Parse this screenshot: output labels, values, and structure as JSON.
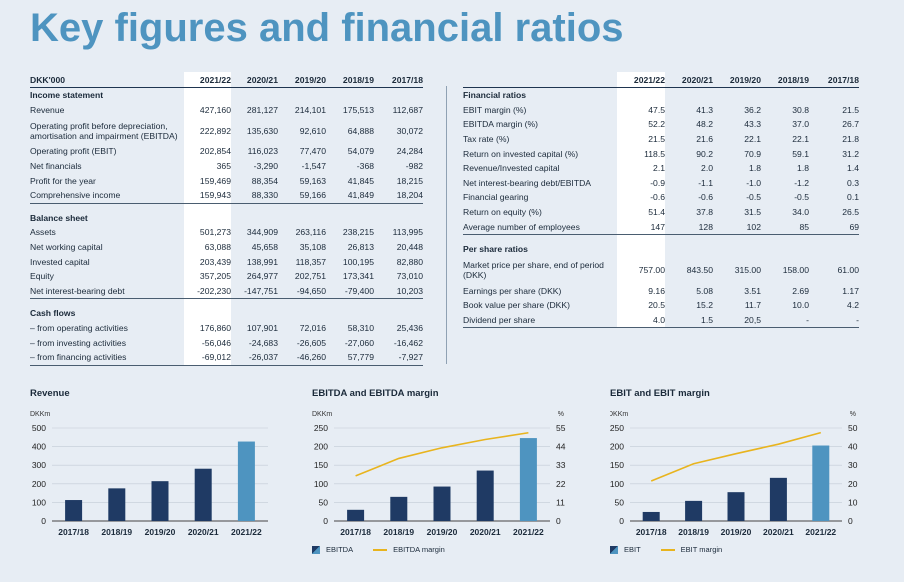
{
  "title": "Key figures and financial ratios",
  "years": [
    "2021/22",
    "2020/21",
    "2019/20",
    "2018/19",
    "2017/18"
  ],
  "left_table": {
    "unit": "DKK'000",
    "sections": [
      {
        "heading": "Income statement",
        "rows": [
          {
            "label": "Revenue",
            "values": [
              "427,160",
              "281,127",
              "214,101",
              "175,513",
              "112,687"
            ]
          },
          {
            "label": "Operating profit before depreciation, amortisation and impairment (EBITDA)",
            "values": [
              "222,892",
              "135,630",
              "92,610",
              "64,888",
              "30,072"
            ]
          },
          {
            "label": "Operating profit (EBIT)",
            "values": [
              "202,854",
              "116,023",
              "77,470",
              "54,079",
              "24,284"
            ]
          },
          {
            "label": "Net financials",
            "values": [
              "365",
              "-3,290",
              "-1,547",
              "-368",
              "-982"
            ]
          },
          {
            "label": "Profit for the year",
            "values": [
              "159,469",
              "88,354",
              "59,163",
              "41,845",
              "18,215"
            ]
          },
          {
            "label": "Comprehensive income",
            "values": [
              "159,943",
              "88,330",
              "59,166",
              "41,849",
              "18,204"
            ]
          }
        ]
      },
      {
        "heading": "Balance sheet",
        "rows": [
          {
            "label": "Assets",
            "values": [
              "501,273",
              "344,909",
              "263,116",
              "238,215",
              "113,995"
            ]
          },
          {
            "label": "Net working capital",
            "values": [
              "63,088",
              "45,658",
              "35,108",
              "26,813",
              "20,448"
            ]
          },
          {
            "label": "Invested capital",
            "values": [
              "203,439",
              "138,991",
              "118,357",
              "100,195",
              "82,880"
            ]
          },
          {
            "label": "Equity",
            "values": [
              "357,205",
              "264,977",
              "202,751",
              "173,341",
              "73,010"
            ]
          },
          {
            "label": "Net interest-bearing debt",
            "values": [
              "-202,230",
              "-147,751",
              "-94,650",
              "-79,400",
              "10,203"
            ]
          }
        ]
      },
      {
        "heading": "Cash flows",
        "rows": [
          {
            "label": "– from operating activities",
            "values": [
              "176,860",
              "107,901",
              "72,016",
              "58,310",
              "25,436"
            ]
          },
          {
            "label": "– from investing activities",
            "values": [
              "-56,046",
              "-24,683",
              "-26,605",
              "-27,060",
              "-16,462"
            ]
          },
          {
            "label": "– from financing activities",
            "values": [
              "-69,012",
              "-26,037",
              "-46,260",
              "57,779",
              "-7,927"
            ]
          }
        ]
      }
    ]
  },
  "right_table": {
    "sections": [
      {
        "heading": "Financial ratios",
        "rows": [
          {
            "label": "EBIT margin (%)",
            "values": [
              "47.5",
              "41.3",
              "36.2",
              "30.8",
              "21.5"
            ]
          },
          {
            "label": "EBITDA margin (%)",
            "values": [
              "52.2",
              "48.2",
              "43.3",
              "37.0",
              "26.7"
            ]
          },
          {
            "label": "Tax rate (%)",
            "values": [
              "21.5",
              "21.6",
              "22.1",
              "22.1",
              "21.8"
            ]
          },
          {
            "label": "Return on invested capital (%)",
            "values": [
              "118.5",
              "90.2",
              "70.9",
              "59.1",
              "31.2"
            ]
          },
          {
            "label": "Revenue/Invested capital",
            "values": [
              "2.1",
              "2.0",
              "1.8",
              "1.8",
              "1.4"
            ]
          },
          {
            "label": "Net interest-bearing debt/EBITDA",
            "values": [
              "-0.9",
              "-1.1",
              "-1.0",
              "-1.2",
              "0.3"
            ]
          },
          {
            "label": "Financial gearing",
            "values": [
              "-0.6",
              "-0.6",
              "-0.5",
              "-0.5",
              "0.1"
            ]
          },
          {
            "label": "Return on equity (%)",
            "values": [
              "51.4",
              "37.8",
              "31.5",
              "34.0",
              "26.5"
            ]
          },
          {
            "label": "Average number of employees",
            "values": [
              "147",
              "128",
              "102",
              "85",
              "69"
            ]
          }
        ]
      },
      {
        "heading": "Per share ratios",
        "rows": [
          {
            "label": "Market price per share, end of period (DKK)",
            "values": [
              "757.00",
              "843.50",
              "315.00",
              "158.00",
              "61.00"
            ]
          },
          {
            "label": "Earnings per share (DKK)",
            "values": [
              "9.16",
              "5.08",
              "3.51",
              "2.69",
              "1.17"
            ]
          },
          {
            "label": "Book value per share (DKK)",
            "values": [
              "20.5",
              "15.2",
              "11.7",
              "10.0",
              "4.2"
            ]
          },
          {
            "label": "Dividend per share",
            "values": [
              "4.0",
              "1.5",
              "20,5",
              "-",
              "-"
            ]
          }
        ]
      }
    ]
  },
  "chart_data": [
    {
      "type": "bar",
      "title": "Revenue",
      "ylabel": "DKKm",
      "categories": [
        "2017/18",
        "2018/19",
        "2019/20",
        "2020/21",
        "2021/22"
      ],
      "values": [
        112.7,
        175.5,
        214.1,
        281.1,
        427.2
      ],
      "ylim": [
        0,
        500
      ],
      "yticks": [
        "0",
        "100",
        "200",
        "300",
        "400",
        "500"
      ],
      "colors": {
        "bar": "#1f3a64",
        "highlight": "#4e94c0"
      }
    },
    {
      "type": "bar+line",
      "title": "EBITDA and EBITDA margin",
      "ylabel": "DKKm",
      "y2label": "%",
      "categories": [
        "2017/18",
        "2018/19",
        "2019/20",
        "2020/21",
        "2021/22"
      ],
      "series": [
        {
          "name": "EBITDA",
          "type": "bar",
          "values": [
            30.1,
            64.9,
            92.6,
            135.6,
            222.9
          ]
        },
        {
          "name": "EBITDA margin",
          "type": "line",
          "axis": "right",
          "values": [
            26.7,
            37.0,
            43.3,
            48.2,
            52.2
          ]
        }
      ],
      "ylim": [
        0,
        250
      ],
      "yticks": [
        "0",
        "50",
        "100",
        "150",
        "200",
        "250"
      ],
      "y2lim": [
        0,
        55
      ],
      "y2ticks": [
        "0",
        "11",
        "22",
        "33",
        "44",
        "55"
      ],
      "colors": {
        "bar": "#1f3a64",
        "highlight": "#4e94c0",
        "line": "#e8b41e"
      }
    },
    {
      "type": "bar+line",
      "title": "EBIT and EBIT margin",
      "ylabel": "DKKm",
      "y2label": "%",
      "categories": [
        "2017/18",
        "2018/19",
        "2019/20",
        "2020/21",
        "2021/22"
      ],
      "series": [
        {
          "name": "EBIT",
          "type": "bar",
          "values": [
            24.3,
            54.1,
            77.5,
            116.0,
            202.9
          ]
        },
        {
          "name": "EBIT margin",
          "type": "line",
          "axis": "right",
          "values": [
            21.5,
            30.8,
            36.2,
            41.3,
            47.5
          ]
        }
      ],
      "ylim": [
        0,
        250
      ],
      "yticks": [
        "0",
        "50",
        "100",
        "150",
        "200",
        "250"
      ],
      "y2lim": [
        0,
        50
      ],
      "y2ticks": [
        "0",
        "10",
        "20",
        "30",
        "40",
        "50"
      ],
      "colors": {
        "bar": "#1f3a64",
        "highlight": "#4e94c0",
        "line": "#e8b41e"
      }
    }
  ]
}
